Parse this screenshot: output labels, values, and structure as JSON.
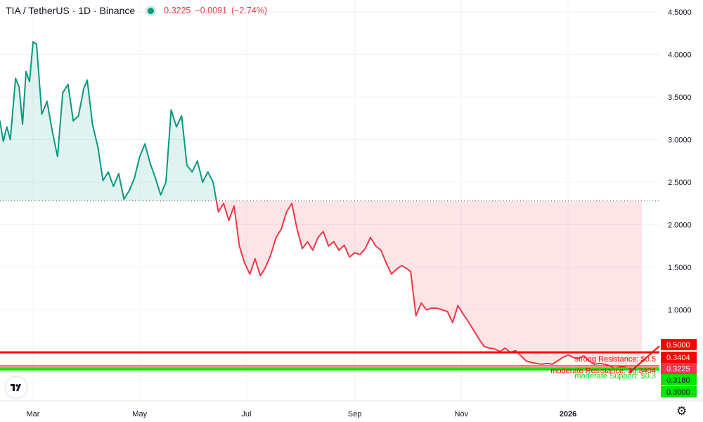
{
  "header": {
    "symbol": "TIA / TetherUS · 1D · Binance",
    "last_price": "0.3225",
    "change": "−0.0091",
    "change_pct": "(−2.74%)"
  },
  "colors": {
    "up": "#089981",
    "down": "#f23645",
    "resistance": "#ff0000",
    "support": "#00e600",
    "grid": "#f0f3fa",
    "text": "#131722"
  },
  "icons": {
    "logo": "tradingview-logo-icon",
    "settings": "gear-icon"
  },
  "chart_data": {
    "type": "line",
    "y_scale": "linear",
    "ylim": [
      0.1,
      4.65
    ],
    "y_ticks": [
      "4.5000",
      "4.0000",
      "3.5000",
      "3.0000",
      "2.5000",
      "2.0000",
      "1.5000",
      "1.0000"
    ],
    "x_ticks": [
      {
        "label": "Mar",
        "date": "2025-03-01"
      },
      {
        "label": "May",
        "date": "2025-05-01"
      },
      {
        "label": "Jul",
        "date": "2025-07-01"
      },
      {
        "label": "Sep",
        "date": "2025-09-01"
      },
      {
        "label": "Nov",
        "date": "2025-11-01"
      },
      {
        "label": "2026",
        "date": "2026-01-01",
        "bold": true
      }
    ],
    "baseline": 2.28,
    "series": [
      {
        "points": [
          [
            "2025-02-07",
            3.23
          ],
          [
            "2025-02-10",
            3.22
          ],
          [
            "2025-02-12",
            2.98
          ],
          [
            "2025-02-14",
            3.15
          ],
          [
            "2025-02-16",
            3.0
          ],
          [
            "2025-02-19",
            3.72
          ],
          [
            "2025-02-21",
            3.62
          ],
          [
            "2025-02-23",
            3.18
          ],
          [
            "2025-02-25",
            3.8
          ],
          [
            "2025-02-27",
            3.68
          ],
          [
            "2025-03-01",
            4.15
          ],
          [
            "2025-03-03",
            4.12
          ],
          [
            "2025-03-06",
            3.3
          ],
          [
            "2025-03-09",
            3.45
          ],
          [
            "2025-03-12",
            3.1
          ],
          [
            "2025-03-15",
            2.8
          ],
          [
            "2025-03-18",
            3.55
          ],
          [
            "2025-03-21",
            3.65
          ],
          [
            "2025-03-24",
            3.22
          ],
          [
            "2025-03-27",
            3.28
          ],
          [
            "2025-03-30",
            3.6
          ],
          [
            "2025-04-01",
            3.7
          ],
          [
            "2025-04-04",
            3.18
          ],
          [
            "2025-04-07",
            2.92
          ],
          [
            "2025-04-10",
            2.52
          ],
          [
            "2025-04-13",
            2.62
          ],
          [
            "2025-04-16",
            2.45
          ],
          [
            "2025-04-19",
            2.6
          ],
          [
            "2025-04-22",
            2.3
          ],
          [
            "2025-04-25",
            2.4
          ],
          [
            "2025-04-28",
            2.55
          ],
          [
            "2025-05-01",
            2.8
          ],
          [
            "2025-05-04",
            2.95
          ],
          [
            "2025-05-07",
            2.72
          ],
          [
            "2025-05-10",
            2.55
          ],
          [
            "2025-05-13",
            2.35
          ],
          [
            "2025-05-16",
            2.5
          ],
          [
            "2025-05-19",
            3.35
          ],
          [
            "2025-05-22",
            3.15
          ],
          [
            "2025-05-25",
            3.28
          ],
          [
            "2025-05-28",
            2.7
          ],
          [
            "2025-05-31",
            2.62
          ],
          [
            "2025-06-03",
            2.75
          ],
          [
            "2025-06-06",
            2.5
          ],
          [
            "2025-06-09",
            2.62
          ],
          [
            "2025-06-12",
            2.5
          ],
          [
            "2025-06-15",
            2.15
          ],
          [
            "2025-06-18",
            2.25
          ],
          [
            "2025-06-21",
            2.05
          ],
          [
            "2025-06-24",
            2.22
          ],
          [
            "2025-06-27",
            1.75
          ],
          [
            "2025-06-30",
            1.55
          ],
          [
            "2025-07-03",
            1.42
          ],
          [
            "2025-07-06",
            1.6
          ],
          [
            "2025-07-09",
            1.4
          ],
          [
            "2025-07-12",
            1.5
          ],
          [
            "2025-07-15",
            1.65
          ],
          [
            "2025-07-18",
            1.85
          ],
          [
            "2025-07-21",
            1.95
          ],
          [
            "2025-07-24",
            2.15
          ],
          [
            "2025-07-27",
            2.25
          ],
          [
            "2025-07-30",
            1.95
          ],
          [
            "2025-08-02",
            1.72
          ],
          [
            "2025-08-05",
            1.8
          ],
          [
            "2025-08-08",
            1.7
          ],
          [
            "2025-08-11",
            1.85
          ],
          [
            "2025-08-14",
            1.92
          ],
          [
            "2025-08-17",
            1.75
          ],
          [
            "2025-08-20",
            1.8
          ],
          [
            "2025-08-23",
            1.7
          ],
          [
            "2025-08-26",
            1.76
          ],
          [
            "2025-08-29",
            1.62
          ],
          [
            "2025-09-01",
            1.67
          ],
          [
            "2025-09-04",
            1.65
          ],
          [
            "2025-09-07",
            1.72
          ],
          [
            "2025-09-10",
            1.85
          ],
          [
            "2025-09-13",
            1.75
          ],
          [
            "2025-09-16",
            1.7
          ],
          [
            "2025-09-19",
            1.55
          ],
          [
            "2025-09-22",
            1.42
          ],
          [
            "2025-09-25",
            1.48
          ],
          [
            "2025-09-28",
            1.52
          ],
          [
            "2025-10-01",
            1.48
          ],
          [
            "2025-10-03",
            1.45
          ],
          [
            "2025-10-06",
            0.93
          ],
          [
            "2025-10-09",
            1.08
          ],
          [
            "2025-10-12",
            1.0
          ],
          [
            "2025-10-15",
            1.02
          ],
          [
            "2025-10-18",
            1.02
          ],
          [
            "2025-10-21",
            1.0
          ],
          [
            "2025-10-24",
            0.98
          ],
          [
            "2025-10-27",
            0.85
          ],
          [
            "2025-10-30",
            1.05
          ],
          [
            "2025-11-02",
            0.95
          ],
          [
            "2025-11-05",
            0.86
          ],
          [
            "2025-11-08",
            0.76
          ],
          [
            "2025-11-11",
            0.66
          ],
          [
            "2025-11-14",
            0.57
          ],
          [
            "2025-11-17",
            0.55
          ],
          [
            "2025-11-20",
            0.54
          ],
          [
            "2025-11-23",
            0.51
          ],
          [
            "2025-11-26",
            0.55
          ],
          [
            "2025-11-29",
            0.5
          ],
          [
            "2025-12-02",
            0.52
          ],
          [
            "2025-12-05",
            0.46
          ],
          [
            "2025-12-08",
            0.4
          ],
          [
            "2025-12-11",
            0.38
          ],
          [
            "2025-12-14",
            0.37
          ],
          [
            "2025-12-17",
            0.36
          ],
          [
            "2025-12-20",
            0.37
          ],
          [
            "2025-12-23",
            0.36
          ],
          [
            "2025-12-26",
            0.4
          ],
          [
            "2025-12-29",
            0.44
          ],
          [
            "2026-01-01",
            0.47
          ],
          [
            "2026-01-04",
            0.44
          ],
          [
            "2026-01-07",
            0.43
          ],
          [
            "2026-01-10",
            0.46
          ],
          [
            "2026-01-13",
            0.4
          ],
          [
            "2026-01-16",
            0.36
          ],
          [
            "2026-01-19",
            0.37
          ],
          [
            "2026-01-22",
            0.36
          ],
          [
            "2026-01-25",
            0.34
          ],
          [
            "2026-01-28",
            0.31
          ],
          [
            "2026-01-31",
            0.33
          ],
          [
            "2026-02-03",
            0.3225
          ]
        ]
      }
    ],
    "levels": [
      {
        "value": 0.5,
        "label": "strong Resistance: $0.5",
        "color": "#ff0000",
        "width": 3
      },
      {
        "value": 0.3404,
        "label": "moderate Resistance: $0.3404",
        "color": "#ff0000",
        "width": 1.5
      },
      {
        "value": 0.318,
        "label": "",
        "color": "#00e600",
        "width": 1.5
      },
      {
        "value": 0.3,
        "label": "moderate Support: $0.3",
        "color": "#00e600",
        "width": 3
      }
    ],
    "price_tags": [
      {
        "value": 0.5,
        "text": "0.5000",
        "bg": "#ff0000"
      },
      {
        "value": 0.3404,
        "text": "0.3404",
        "bg": "#ff0000"
      },
      {
        "value": 0.3225,
        "text": "0.3225",
        "bg": "#f23645"
      },
      {
        "value": 0.318,
        "text": "0.3180",
        "bg": "#00e600"
      },
      {
        "value": 0.3,
        "text": "0.3000",
        "bg": "#00e600"
      }
    ]
  }
}
